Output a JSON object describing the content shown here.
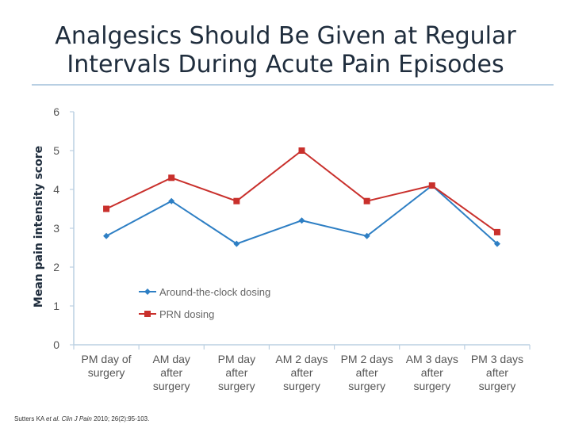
{
  "title": {
    "line1": "Analgesics Should Be Given at Regular",
    "line2": "Intervals During Acute Pain Episodes"
  },
  "colors": {
    "series_around_the_clock": "#2e7fc4",
    "series_prn": "#c9302c",
    "axis": "#bcd0e2",
    "rule": "#b8cfe3"
  },
  "chart_data": {
    "type": "line",
    "title": "",
    "xlabel": "",
    "ylabel": "Mean pain intensity score",
    "ylim": [
      0,
      6
    ],
    "yticks": [
      0,
      1,
      2,
      3,
      4,
      5,
      6
    ],
    "grid": false,
    "legend_position": "lower-left",
    "categories": [
      [
        "PM  day of",
        "surgery"
      ],
      [
        "AM day",
        "after",
        "surgery"
      ],
      [
        "PM  day",
        "after",
        "surgery"
      ],
      [
        "AM 2 days",
        "after",
        "surgery"
      ],
      [
        "PM 2 days",
        "after",
        "surgery"
      ],
      [
        "AM 3 days",
        "after",
        "surgery"
      ],
      [
        "PM 3 days",
        "after",
        "surgery"
      ]
    ],
    "series": [
      {
        "name": "Around-the-clock dosing",
        "values": [
          2.8,
          3.7,
          2.6,
          3.2,
          2.8,
          4.1,
          2.6
        ]
      },
      {
        "name": "PRN dosing",
        "values": [
          3.5,
          4.3,
          3.7,
          5.0,
          3.7,
          4.1,
          2.9
        ]
      }
    ]
  },
  "footer": {
    "authors": "Sutters KA ",
    "etal": "et al. ",
    "journal": "Clin J Pain ",
    "citation": "2010; 26(2):95-103."
  }
}
